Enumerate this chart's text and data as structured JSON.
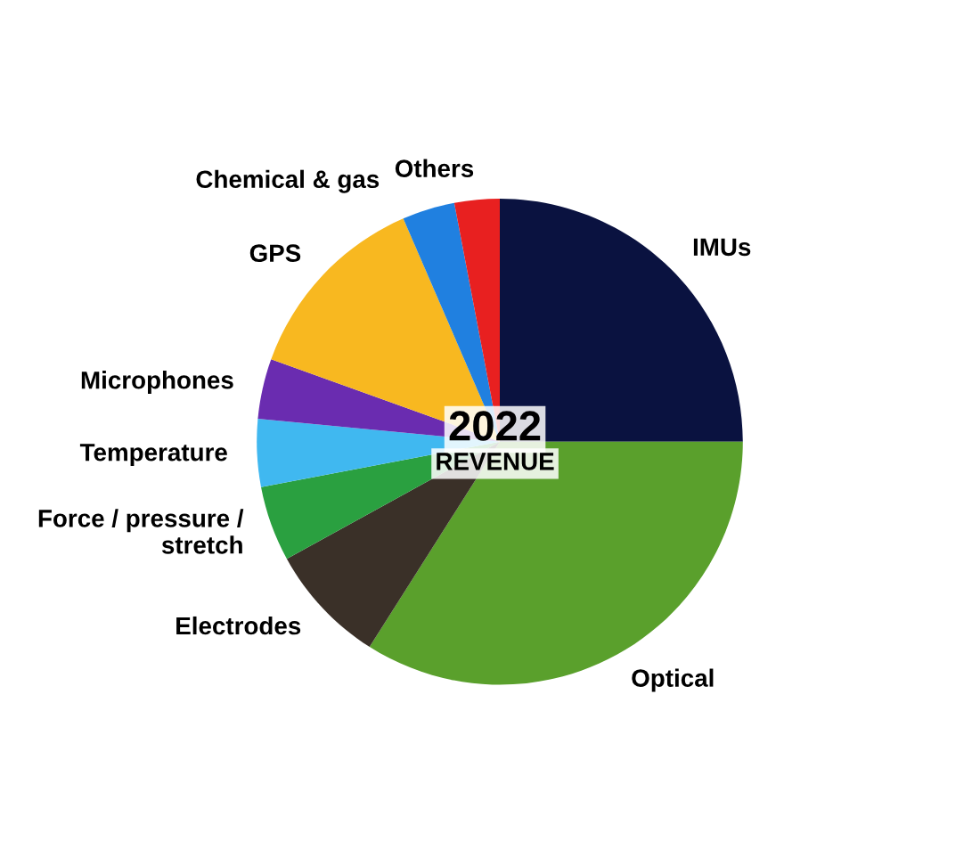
{
  "chart_data": {
    "type": "pie",
    "categories": [
      "IMUs",
      "Optical",
      "Electrodes",
      "Force / pressure /\nstretch",
      "Temperature",
      "Microphones",
      "GPS",
      "Chemical & gas",
      "Others"
    ],
    "values": [
      25,
      34,
      8,
      5,
      4.5,
      4,
      13,
      3.5,
      3
    ],
    "colors": [
      "#0a1240",
      "#5aa02c",
      "#3a3028",
      "#2aa040",
      "#40b8f0",
      "#6a2cb0",
      "#f8b820",
      "#2080e0",
      "#e82020"
    ],
    "annotations": [
      "2022",
      "REVENUE"
    ]
  }
}
